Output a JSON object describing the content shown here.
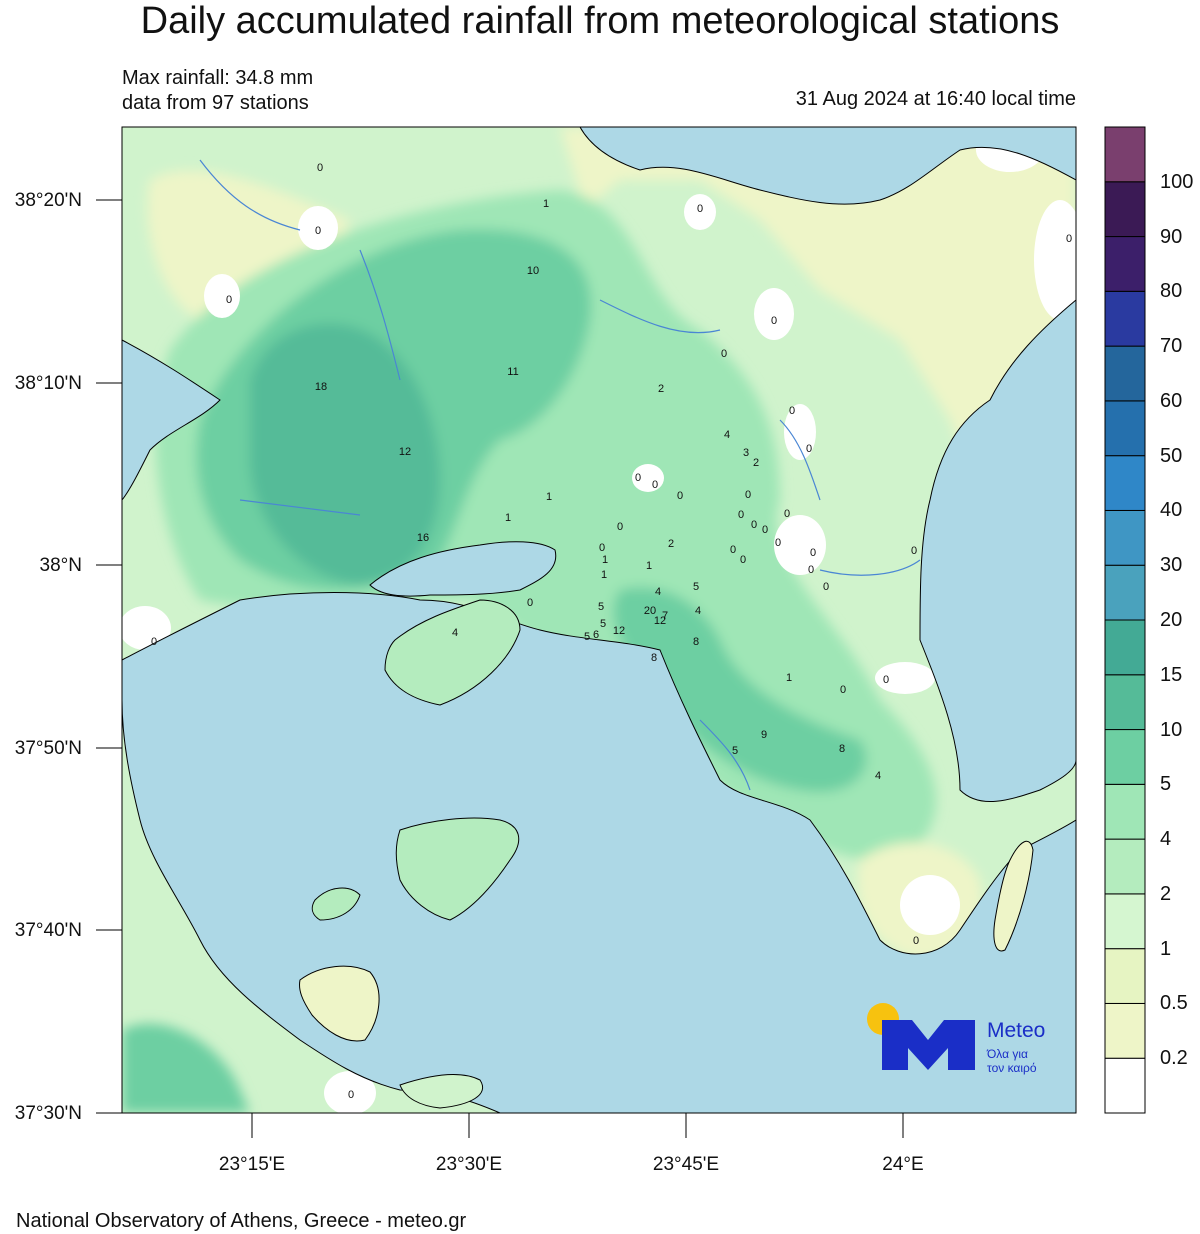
{
  "title": "Daily accumulated rainfall from meteorological stations",
  "max_rainfall": "Max rainfall: 34.8 mm",
  "stations_info": "data from 97 stations",
  "timestamp": "31 Aug 2024 at 16:40 local time",
  "footer": "National Observatory of Athens, Greece - meteo.gr",
  "lat_labels": [
    "38°20'N",
    "38°10'N",
    "38°N",
    "37°50'N",
    "37°40'N",
    "37°30'N"
  ],
  "lon_labels": [
    "23°15'E",
    "23°30'E",
    "23°45'E",
    "24°E"
  ],
  "colorbar_labels": [
    "0.2",
    "0.5",
    "1",
    "2",
    "4",
    "5",
    "10",
    "15",
    "20",
    "30",
    "40",
    "50",
    "60",
    "70",
    "80",
    "90",
    "100"
  ],
  "colorbar_colors": [
    "#ffffff",
    "#eef5c8",
    "#e6f4c2",
    "#d5f6d0",
    "#b4ecbe",
    "#9fe6b6",
    "#6dcfa2",
    "#55bb98",
    "#43aa95",
    "#4aa2bd",
    "#3f96c4",
    "#2f87c8",
    "#2570ad",
    "#24669c",
    "#2a3aa0",
    "#3c1f6a",
    "#3b1a55",
    "#7a3f6e"
  ],
  "logo": {
    "brand": "Meteo",
    "tagline_line1": "Όλα για",
    "tagline_line2": "τον καιρό",
    "sun_color": "#f7c20f",
    "m_color": "#1a2ec7"
  },
  "colors": {
    "sea": "#add8e6",
    "land_base": "#d0f3cc"
  },
  "stations": [
    "0",
    "0",
    "0",
    "1",
    "0",
    "0",
    "10",
    "0",
    "11",
    "0",
    "18",
    "2",
    "0",
    "4",
    "0",
    "3",
    "2",
    "12",
    "0",
    "0",
    "0",
    "1",
    "0",
    "0",
    "1",
    "0",
    "0",
    "16",
    "0",
    "0",
    "2",
    "0",
    "0",
    "0",
    "0",
    "0",
    "0",
    "1",
    "1",
    "0",
    "1",
    "4",
    "5",
    "0",
    "5",
    "20",
    "7",
    "4",
    "5",
    "12",
    "12",
    "6",
    "5",
    "8",
    "4",
    "8",
    "1",
    "0",
    "0",
    "0",
    "9",
    "5",
    "8",
    "4",
    "0",
    "0",
    "0"
  ]
}
